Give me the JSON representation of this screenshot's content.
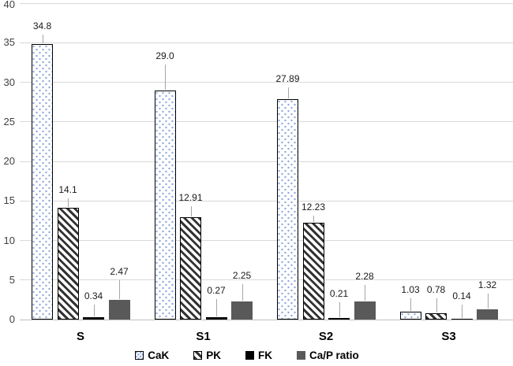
{
  "chart_data": {
    "type": "bar",
    "categories": [
      "S",
      "S1",
      "S2",
      "S3"
    ],
    "series": [
      {
        "name": "CaK",
        "values": [
          34.8,
          29.0,
          27.89,
          1.03
        ],
        "labels": [
          "34.8",
          "29.0",
          "27.89",
          "1.03"
        ],
        "pattern": "dots",
        "color": "#8fa8dc"
      },
      {
        "name": "PK",
        "values": [
          14.1,
          12.91,
          12.23,
          0.78
        ],
        "labels": [
          "14.1",
          "12.91",
          "12.23",
          "0.78"
        ],
        "pattern": "stripes",
        "color": "#333333"
      },
      {
        "name": "FK",
        "values": [
          0.34,
          0.27,
          0.21,
          0.14
        ],
        "labels": [
          "0.34",
          "0.27",
          "0.21",
          "0.14"
        ],
        "pattern": "solid",
        "color": "#000000"
      },
      {
        "name": "Ca/P ratio",
        "values": [
          2.47,
          2.25,
          2.28,
          1.32
        ],
        "labels": [
          "2.47",
          "2.25",
          "2.28",
          "1.32"
        ],
        "pattern": "solid",
        "color": "#595959"
      }
    ],
    "y_axis": {
      "min": 0,
      "max": 40,
      "step": 5,
      "tick_labels": [
        "0",
        "5",
        "10",
        "15",
        "20",
        "25",
        "30",
        "35",
        "40"
      ]
    },
    "x_axis": {
      "tick_labels": [
        "S",
        "S1",
        "S2",
        "S3"
      ]
    },
    "grid": true,
    "legend": {
      "position": "bottom",
      "entries": [
        "CaK",
        "PK",
        "FK",
        "Ca/P ratio"
      ]
    },
    "layout_hints": {
      "ylim": [
        0,
        40
      ],
      "data_labels_have_leader_lines": true,
      "label_leader_offsets": {
        "CaK": [
          16,
          37,
          19,
          21
        ],
        "PK": [
          16,
          18,
          13,
          23
        ],
        "FK": [
          20,
          27,
          24,
          22
        ],
        "Ca/P ratio": [
          29,
          26,
          25,
          24
        ]
      }
    }
  },
  "colors": {
    "background": "#ffffff",
    "gridline": "#d9d9d9",
    "axis_line": "#bfbfbf",
    "tick_text": "#404040",
    "data_label_text": "#1a1a1a",
    "leader_line": "#a6a6a6",
    "cak_dot_fill": "#8fa8dc",
    "pk_hatch": "#333333",
    "fk_fill": "#000000",
    "cap_ratio_fill": "#595959"
  }
}
